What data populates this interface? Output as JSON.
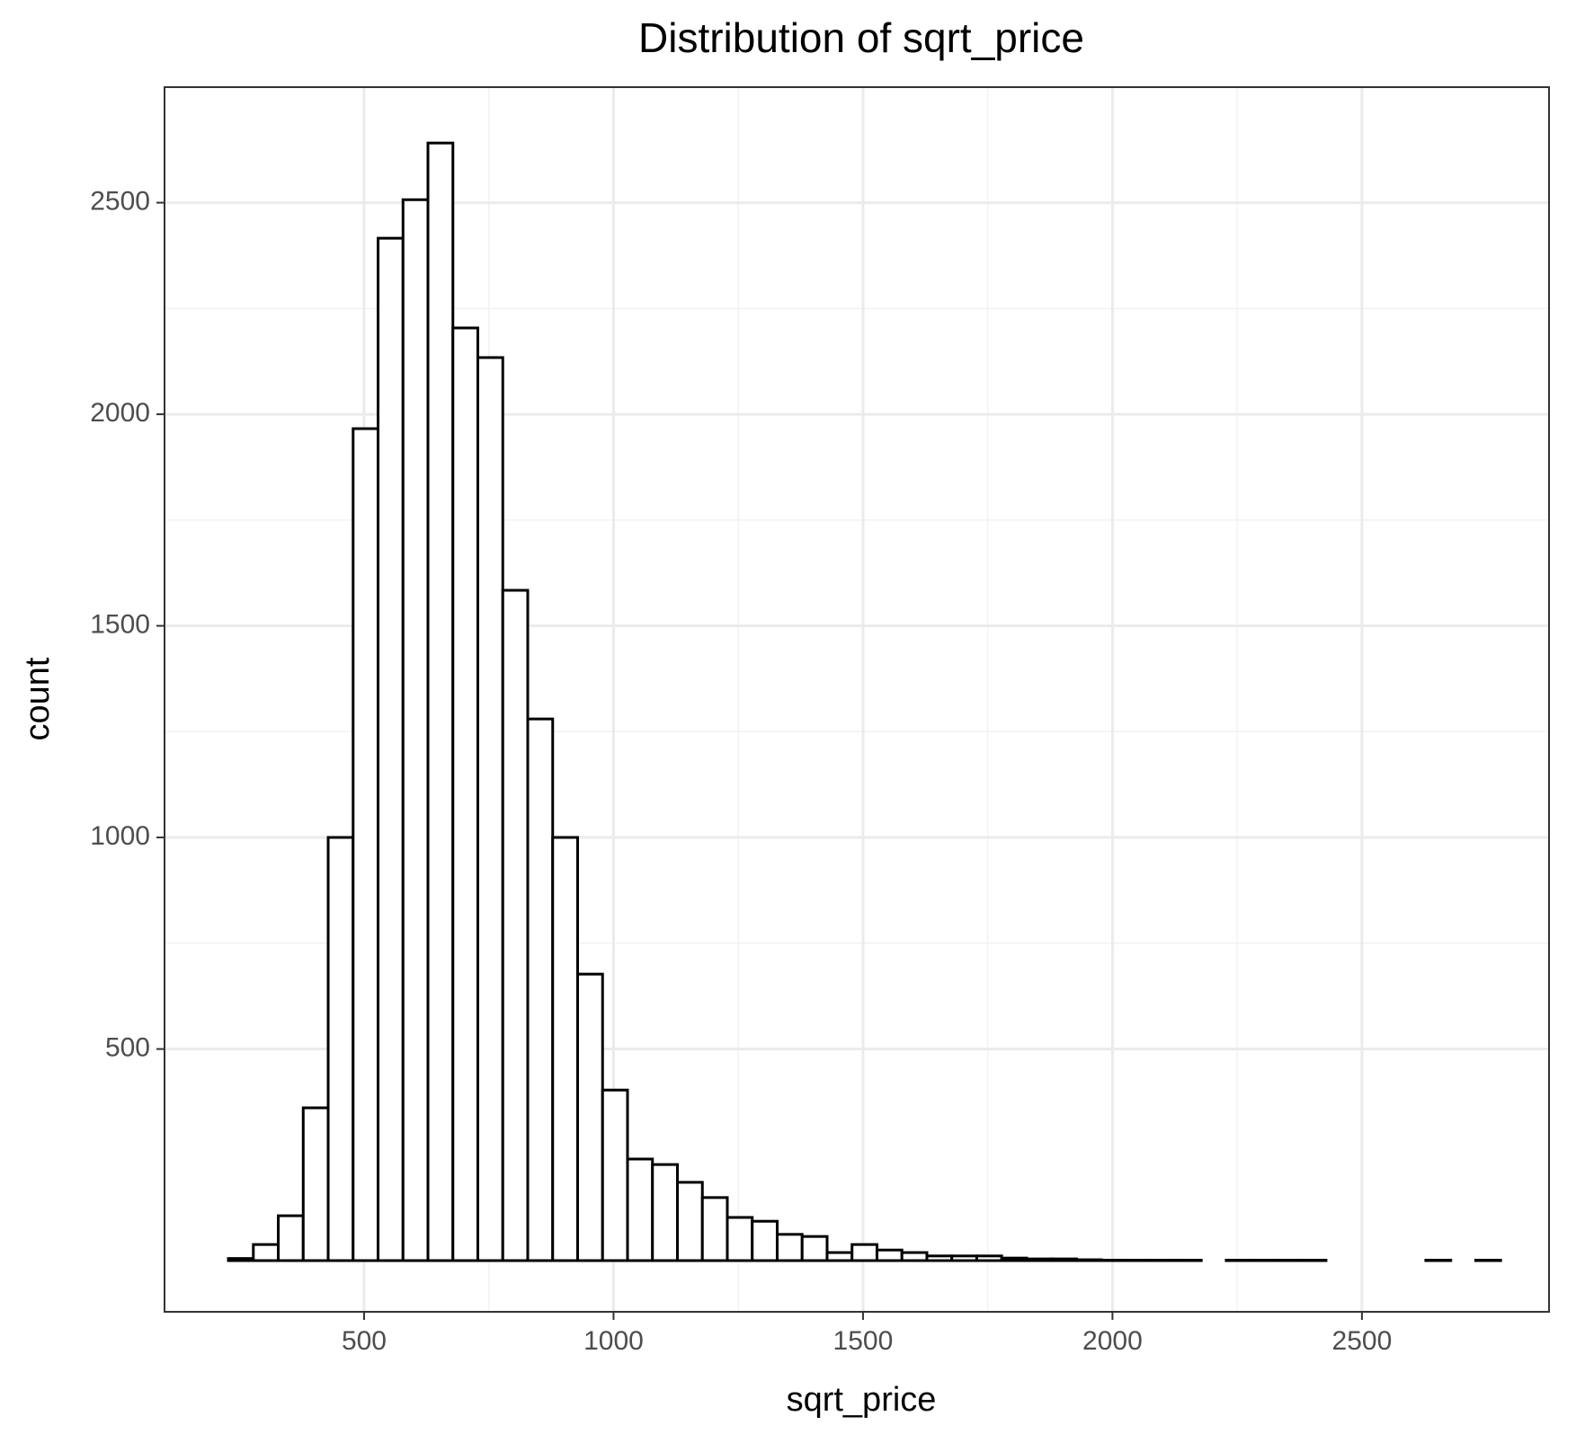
{
  "chart_data": {
    "type": "histogram",
    "title": "Distribution of sqrt_price",
    "x_label": "sqrt_price",
    "y_label": "count",
    "bins": [
      228,
      278,
      328,
      378,
      428,
      478,
      528,
      578,
      628,
      678,
      728,
      778,
      828,
      878,
      928,
      978,
      1028,
      1078,
      1128,
      1178,
      1228,
      1278,
      1328,
      1378,
      1428,
      1478,
      1528,
      1578,
      1628,
      1678,
      1728,
      1778,
      1828,
      1878,
      1928,
      1978,
      2028,
      2078,
      2128,
      2178,
      2228,
      2278,
      2328,
      2378,
      2428,
      2478,
      2528,
      2578,
      2628,
      2678,
      2728,
      2778
    ],
    "values": [
      5,
      38,
      106,
      361,
      1000,
      1966,
      2416,
      2507,
      2641,
      2204,
      2134,
      1584,
      1280,
      1000,
      677,
      403,
      240,
      227,
      185,
      149,
      102,
      93,
      62,
      57,
      19,
      38,
      25,
      19,
      11,
      11,
      11,
      6,
      4,
      4,
      2,
      1,
      1,
      1,
      1,
      0,
      1,
      1,
      1,
      1,
      0,
      0,
      0,
      0,
      1,
      0,
      1
    ],
    "fill": "#ffffff",
    "edge_color": "#000000",
    "xlim": [
      100,
      2875
    ],
    "ylim": [
      -121,
      2773
    ],
    "xticks": [
      500,
      1000,
      1500,
      2000,
      2500
    ],
    "yticks": [
      500,
      1000,
      1500,
      2000,
      2500
    ],
    "grid": true
  }
}
